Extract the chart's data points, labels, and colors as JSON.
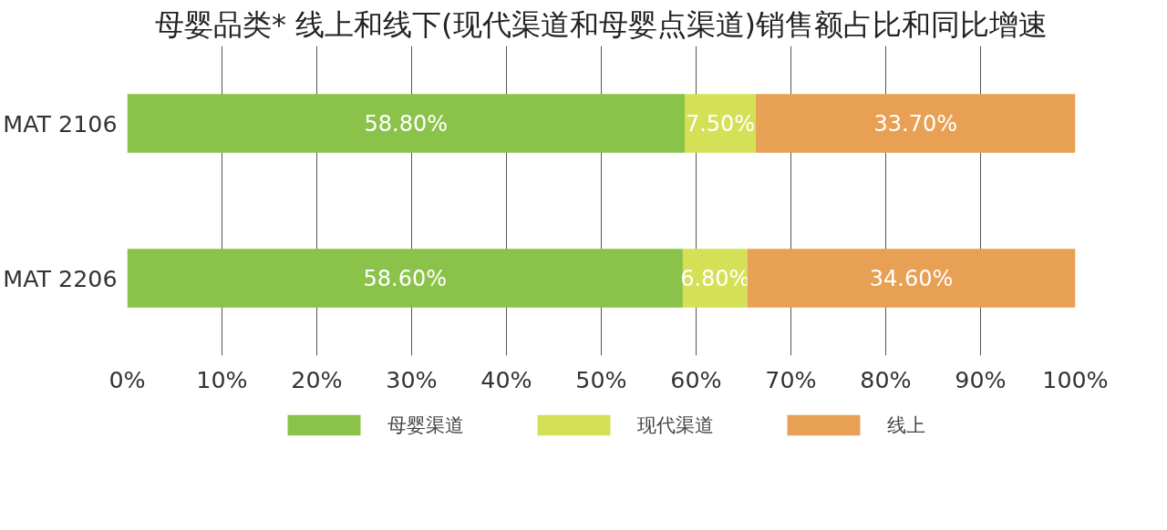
{
  "chart_data": {
    "type": "bar",
    "orientation": "horizontal",
    "stacked": true,
    "title": "母婴品类* 线上和线下(现代渠道和母婴点渠道)销售额占比和同比增速",
    "categories": [
      "MAT 2106",
      "MAT 2206"
    ],
    "series": [
      {
        "name": "母婴渠道",
        "color": "#8bc34a",
        "values": [
          58.8,
          58.6
        ],
        "value_labels": [
          "58.80%",
          "58.60%"
        ]
      },
      {
        "name": "现代渠道",
        "color": "#d4e157",
        "values": [
          7.5,
          6.8
        ],
        "value_labels": [
          "7.50%",
          "6.80%"
        ]
      },
      {
        "name": "线上",
        "color": "#e8a055",
        "values": [
          33.7,
          34.6
        ],
        "value_labels": [
          "33.70%",
          "34.60%"
        ]
      }
    ],
    "xlim": [
      0,
      100
    ],
    "xticks": [
      {
        "value": 0,
        "label": "0%"
      },
      {
        "value": 10,
        "label": "10%"
      },
      {
        "value": 20,
        "label": "20%"
      },
      {
        "value": 30,
        "label": "30%"
      },
      {
        "value": 40,
        "label": "40%"
      },
      {
        "value": 50,
        "label": "50%"
      },
      {
        "value": 60,
        "label": "60%"
      },
      {
        "value": 70,
        "label": "70%"
      },
      {
        "value": 80,
        "label": "80%"
      },
      {
        "value": 90,
        "label": "90%"
      },
      {
        "value": 100,
        "label": "100%"
      }
    ],
    "grid": "x",
    "legend": "bottom"
  }
}
